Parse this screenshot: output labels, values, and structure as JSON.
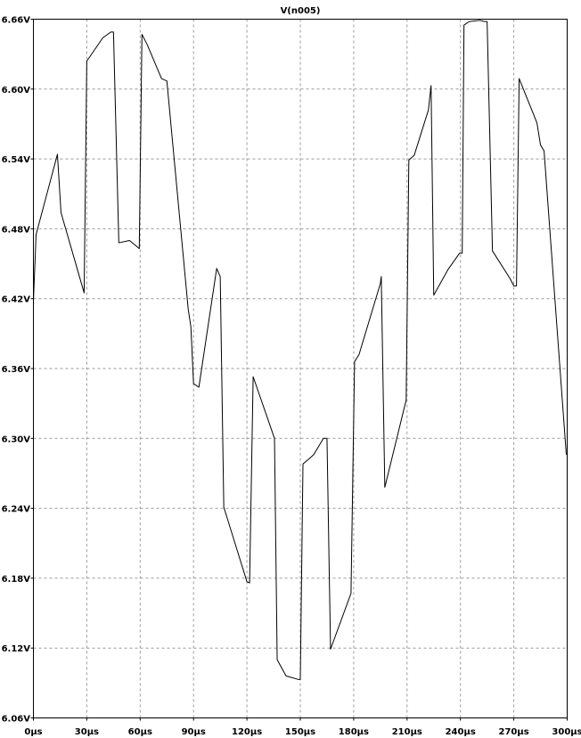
{
  "chart_data": {
    "type": "line",
    "title": "V(n005)",
    "xlabel": "",
    "ylabel": "",
    "xlim": [
      0,
      300
    ],
    "ylim": [
      6.06,
      6.66
    ],
    "grid": true,
    "x_tick_labels": [
      "0µs",
      "30µs",
      "60µs",
      "90µs",
      "120µs",
      "150µs",
      "180µs",
      "210µs",
      "240µs",
      "270µs",
      "300µs"
    ],
    "x_ticks": [
      0,
      30,
      60,
      90,
      120,
      150,
      180,
      210,
      240,
      270,
      300
    ],
    "y_tick_labels": [
      "6.06V",
      "6.12V",
      "6.18V",
      "6.24V",
      "6.30V",
      "6.36V",
      "6.42V",
      "6.48V",
      "6.54V",
      "6.60V",
      "6.66V"
    ],
    "y_ticks": [
      6.06,
      6.12,
      6.18,
      6.24,
      6.3,
      6.36,
      6.42,
      6.48,
      6.54,
      6.6,
      6.66
    ],
    "series": [
      {
        "name": "V(n005)",
        "color": "#000000",
        "x": [
          0,
          1.5,
          13.5,
          15.5,
          28.5,
          30,
          39,
          43.5,
          45,
          48,
          54,
          58,
          59.5,
          61,
          64,
          72,
          75,
          87,
          88.5,
          90,
          93,
          103,
          105,
          107,
          120,
          121.5,
          123.5,
          135.5,
          137,
          142,
          149,
          150,
          151.5,
          157.5,
          163,
          165,
          167,
          178.5,
          180.5,
          183,
          195,
          195.5,
          197.5,
          209.5,
          211,
          214,
          222,
          223.5,
          225,
          233,
          239.5,
          241,
          242,
          245,
          251,
          253.5,
          255,
          258,
          268,
          270,
          271.5,
          273,
          283,
          285,
          287,
          299.5
        ],
        "y": [
          6.418,
          6.475,
          6.544,
          6.494,
          6.425,
          6.624,
          6.644,
          6.649,
          6.649,
          6.468,
          6.47,
          6.465,
          6.463,
          6.647,
          6.638,
          6.609,
          6.607,
          6.411,
          6.396,
          6.347,
          6.344,
          6.446,
          6.439,
          6.241,
          6.177,
          6.176,
          6.353,
          6.3,
          6.11,
          6.096,
          6.093,
          6.093,
          6.278,
          6.286,
          6.3,
          6.3,
          6.119,
          6.167,
          6.366,
          6.372,
          6.433,
          6.439,
          6.258,
          6.333,
          6.539,
          6.543,
          6.582,
          6.603,
          6.423,
          6.445,
          6.459,
          6.459,
          6.655,
          6.658,
          6.659,
          6.658,
          6.658,
          6.461,
          6.437,
          6.431,
          6.431,
          6.609,
          6.571,
          6.552,
          6.547,
          6.286
        ]
      }
    ]
  }
}
